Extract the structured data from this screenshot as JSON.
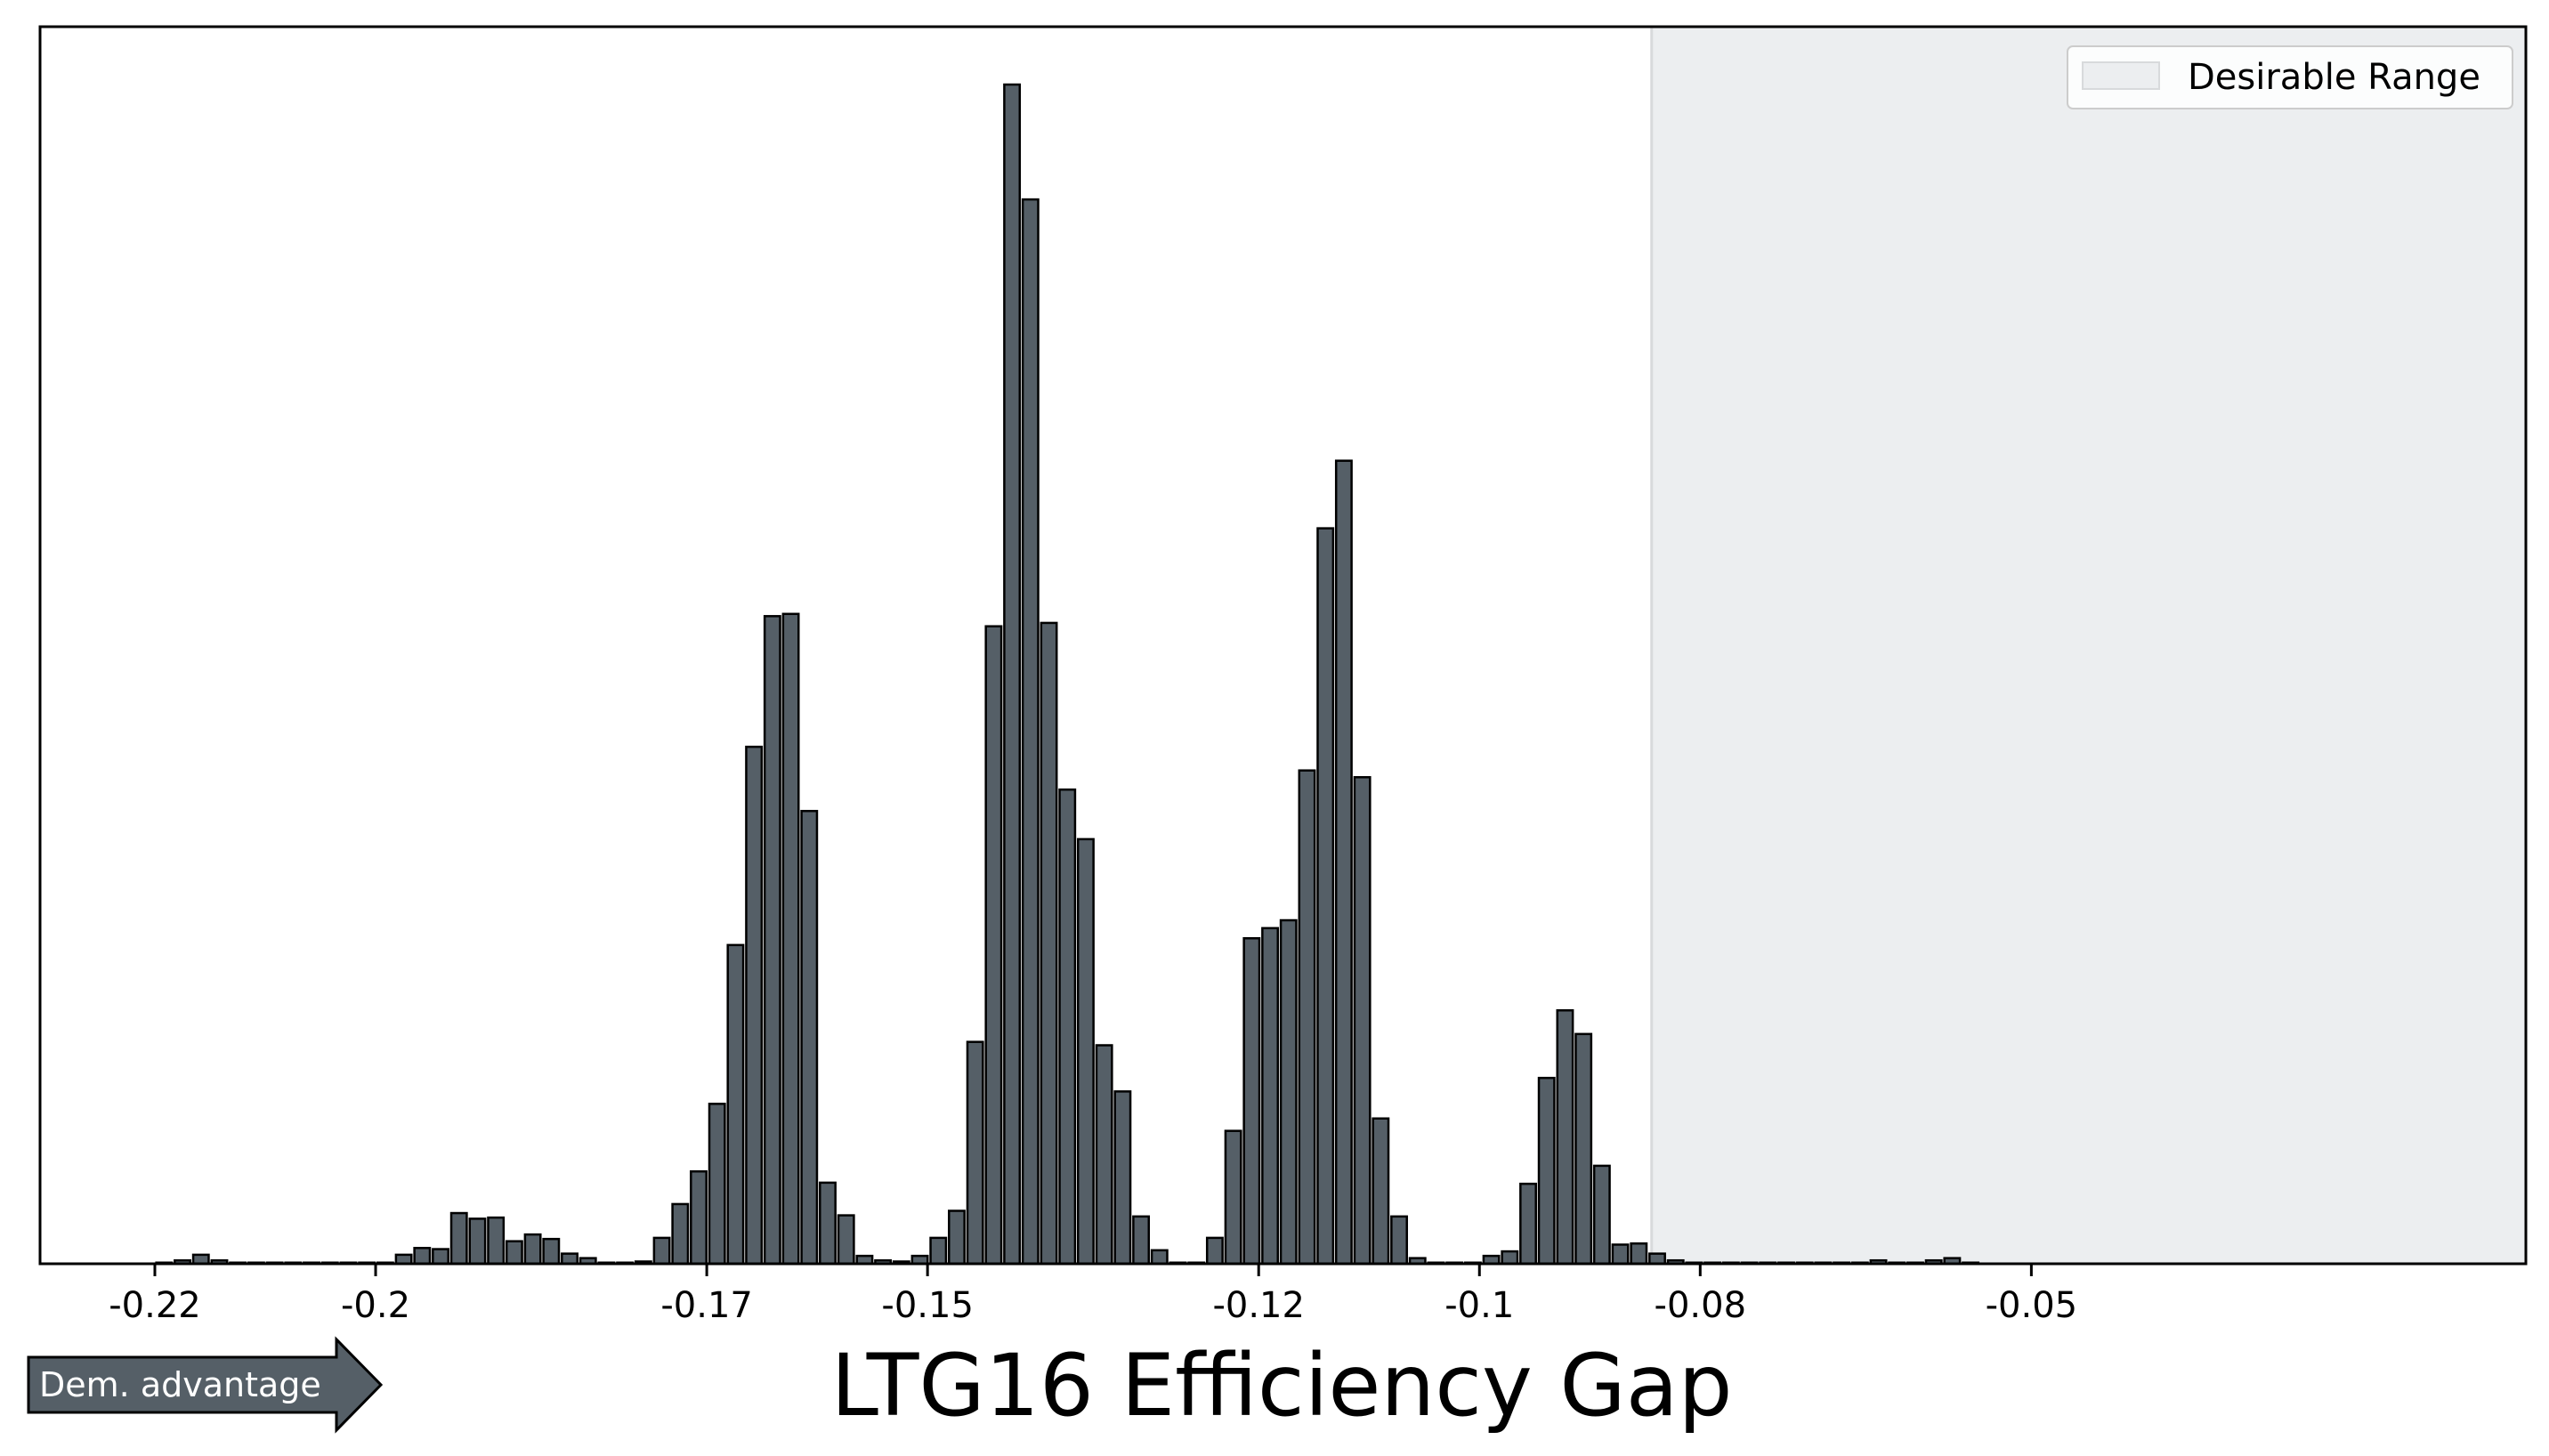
{
  "chart_data": {
    "type": "bar",
    "title": "",
    "xlabel": "LTG16 Efficiency Gap",
    "ylabel": "",
    "xlim": [
      -0.2304,
      -0.0052
    ],
    "ylim": [
      0,
      1047
    ],
    "x_ticks": [
      -0.22,
      -0.2,
      -0.17,
      -0.15,
      -0.12,
      -0.1,
      -0.08,
      -0.05
    ],
    "x_tick_labels": [
      "-0.22",
      "-0.2",
      "-0.17",
      "-0.15",
      "-0.12",
      "-0.1",
      "-0.08",
      "-0.05"
    ],
    "grid": false,
    "legend": {
      "placement": "top-right",
      "entries": [
        "Desirable Range"
      ]
    },
    "desirable_range": {
      "label": "Desirable Range",
      "x_start": -0.0844,
      "x_end": -0.0052,
      "color": "#eceef0"
    },
    "bar_color": "#555f67",
    "bar_edge_color": "#000000",
    "bin_start": -0.22,
    "bin_width": 0.00167,
    "values": [
      1,
      3,
      8,
      3,
      1,
      1,
      1,
      1,
      1,
      1,
      1,
      1,
      1,
      8,
      14,
      13,
      45,
      40,
      41,
      20,
      26,
      22,
      9,
      5,
      1,
      1,
      2,
      23,
      53,
      82,
      142,
      283,
      459,
      575,
      577,
      402,
      72,
      43,
      7,
      3,
      2,
      7,
      23,
      47,
      197,
      566,
      1047,
      945,
      569,
      421,
      377,
      194,
      153,
      42,
      12,
      1,
      1,
      23,
      118,
      289,
      298,
      305,
      438,
      653,
      713,
      432,
      129,
      42,
      5,
      1,
      1,
      1,
      7,
      11,
      71,
      165,
      225,
      204,
      87,
      17,
      18,
      9,
      3,
      1,
      1,
      1,
      1,
      1,
      1,
      1,
      1,
      1,
      1,
      3,
      1,
      1,
      3,
      5,
      1
    ]
  },
  "annotation": {
    "arrow_label": "Dem. advantage",
    "arrow_color": "#555f67"
  }
}
